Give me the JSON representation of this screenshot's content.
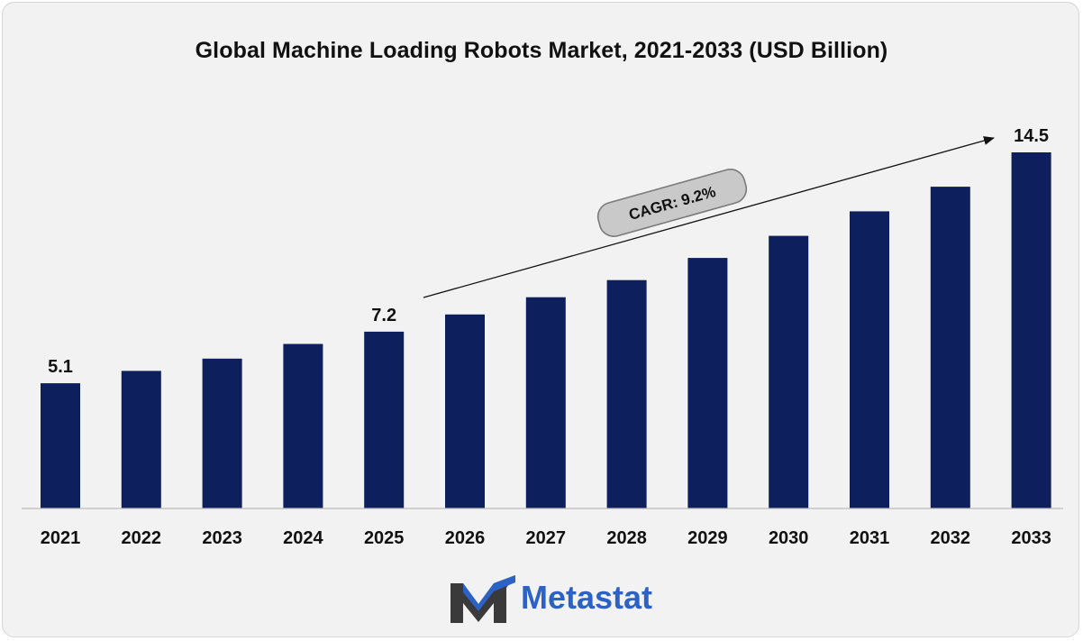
{
  "title": "Global Machine Loading Robots Market, 2021-2033 (USD Billion)",
  "annotation": {
    "cagr_label": "CAGR: 9.2%"
  },
  "brand": {
    "name": "Metastat"
  },
  "colors": {
    "bar": "#0d1f5c",
    "background": "#f2f2f2",
    "brand": "#2c62c6"
  },
  "chart_data": {
    "type": "bar",
    "title": "Global Machine Loading Robots Market, 2021-2033 (USD Billion)",
    "categories": [
      "2021",
      "2022",
      "2023",
      "2024",
      "2025",
      "2026",
      "2027",
      "2028",
      "2029",
      "2030",
      "2031",
      "2032",
      "2033"
    ],
    "values": [
      5.1,
      5.6,
      6.1,
      6.7,
      7.2,
      7.9,
      8.6,
      9.3,
      10.2,
      11.1,
      12.1,
      13.1,
      14.5
    ],
    "labels": [
      "5.1",
      "",
      "",
      "",
      "7.2",
      "",
      "",
      "",
      "",
      "",
      "",
      "",
      "14.5"
    ],
    "ylim": [
      0,
      14.5
    ],
    "grid": false,
    "legend": "none"
  }
}
